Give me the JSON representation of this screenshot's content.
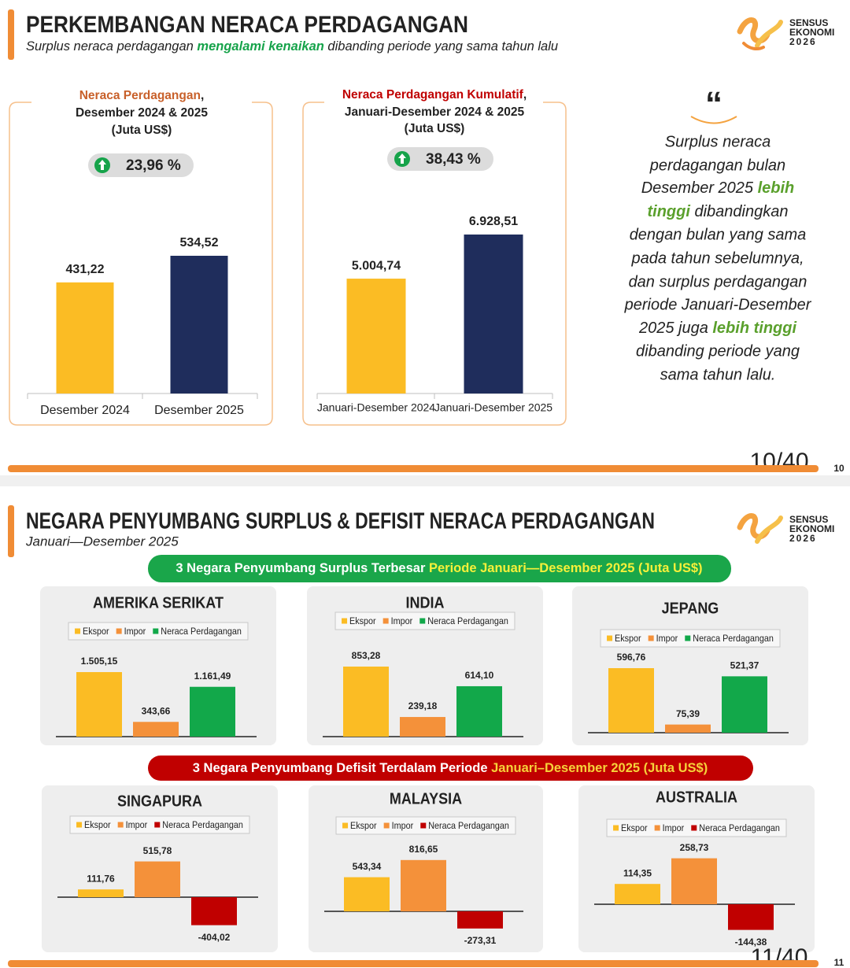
{
  "slide1": {
    "title": "PERKEMBANGAN NERACA PERDAGANGAN",
    "subtitle": [
      "Surplus neraca perdagangan ",
      "mengalami kenaikan",
      " dibanding periode yang sama tahun lalu"
    ],
    "logo": [
      "SENSUS",
      "EKONOMI",
      "2026"
    ],
    "panels": [
      {
        "heading": [
          "Neraca Perdagangan",
          ",",
          "Desember 2024 & 2025",
          "(Juta US$)"
        ],
        "change": "23,96 %"
      },
      {
        "heading": [
          "Neraca Perdagangan Kumulatif",
          ",",
          "Januari-Desember 2024 & 2025",
          "(Juta US$)"
        ],
        "change": "38,43 %"
      }
    ],
    "quote": {
      "mark": "“",
      "lines": [
        [
          "Surplus neraca"
        ],
        [
          "perdagangan bulan"
        ],
        [
          "Desember 2025 ",
          "lebih"
        ],
        [
          "tinggi",
          " dibandingkan"
        ],
        [
          "dengan bulan yang sama"
        ],
        [
          "pada tahun sebelumnya,"
        ],
        [
          "dan surplus perdagangan"
        ],
        [
          "periode Januari-Desember"
        ],
        [
          "2025 juga ",
          "lebih tinggi"
        ],
        [
          "dibanding periode yang"
        ],
        [
          "sama tahun lalu."
        ]
      ]
    },
    "page": "10/40",
    "page_number": "10"
  },
  "slide2": {
    "title": "NEGARA PENYUMBANG",
    "title_highlight": "SURPLUS & DEFISIT NERACA PERDAGANGAN",
    "subtitle": "Januari—Desember 2025",
    "logo": [
      "SENSUS",
      "EKONOMI",
      "2026"
    ],
    "surplus_banner": [
      "3 Negara Penyumbang Surplus Terbesar ",
      "Periode Januari—Desember 2025 (Juta US$)"
    ],
    "deficit_banner": [
      "3 Negara Penyumbang Defisit Terdalam Periode ",
      "Januari–Desember 2025 (Juta US$)"
    ],
    "page": "11/40",
    "page_number": "11"
  },
  "chart_data": [
    {
      "type": "bar",
      "categories": [
        "Desember 2024",
        "Desember 2025"
      ],
      "values": [
        431.22,
        534.52
      ],
      "value_labels": [
        "431,22",
        "534,52"
      ],
      "colors": [
        "#fbbc24",
        "#1f2d5c"
      ]
    },
    {
      "type": "bar",
      "categories": [
        "Januari-Desember 2024",
        "Januari-Desember 2025"
      ],
      "values": [
        5004.74,
        6928.51
      ],
      "value_labels": [
        "5.004,74",
        "6.928,51"
      ],
      "colors": [
        "#fbbc24",
        "#1f2d5c"
      ]
    },
    {
      "type": "bar",
      "title": "AMERIKA SERIKAT",
      "series": [
        {
          "name": "Ekspor",
          "color": "#fbbc24",
          "values": [
            1505.15
          ],
          "value_labels": [
            "1.505,15"
          ]
        },
        {
          "name": "Impor",
          "color": "#f4913a",
          "values": [
            343.66
          ],
          "value_labels": [
            "343,66"
          ]
        },
        {
          "name": "Neraca Perdagangan",
          "color": "#12a84a",
          "values": [
            1161.49
          ],
          "value_labels": [
            "1.161,49"
          ]
        }
      ]
    },
    {
      "type": "bar",
      "title": "INDIA",
      "series": [
        {
          "name": "Ekspor",
          "color": "#fbbc24",
          "values": [
            853.28
          ],
          "value_labels": [
            "853,28"
          ]
        },
        {
          "name": "Impor",
          "color": "#f4913a",
          "values": [
            239.18
          ],
          "value_labels": [
            "239,18"
          ]
        },
        {
          "name": "Neraca Perdagangan",
          "color": "#12a84a",
          "values": [
            614.1
          ],
          "value_labels": [
            "614,10"
          ]
        }
      ]
    },
    {
      "type": "bar",
      "title": "JEPANG",
      "series": [
        {
          "name": "Ekspor",
          "color": "#fbbc24",
          "values": [
            596.76
          ],
          "value_labels": [
            "596,76"
          ]
        },
        {
          "name": "Impor",
          "color": "#f4913a",
          "values": [
            75.39
          ],
          "value_labels": [
            "75,39"
          ]
        },
        {
          "name": "Neraca Perdagangan",
          "color": "#12a84a",
          "values": [
            521.37
          ],
          "value_labels": [
            "521,37"
          ]
        }
      ]
    },
    {
      "type": "bar",
      "title": "SINGAPURA",
      "series": [
        {
          "name": "Ekspor",
          "color": "#fbbc24",
          "values": [
            111.76
          ],
          "value_labels": [
            "111,76"
          ]
        },
        {
          "name": "Impor",
          "color": "#f4913a",
          "values": [
            515.78
          ],
          "value_labels": [
            "515,78"
          ]
        },
        {
          "name": "Neraca Perdagangan",
          "color": "#c00000",
          "values": [
            -404.02
          ],
          "value_labels": [
            "-404,02"
          ]
        }
      ]
    },
    {
      "type": "bar",
      "title": "MALAYSIA",
      "series": [
        {
          "name": "Ekspor",
          "color": "#fbbc24",
          "values": [
            543.34
          ],
          "value_labels": [
            "543,34"
          ]
        },
        {
          "name": "Impor",
          "color": "#f4913a",
          "values": [
            816.65
          ],
          "value_labels": [
            "816,65"
          ]
        },
        {
          "name": "Neraca Perdagangan",
          "color": "#c00000",
          "values": [
            -273.31
          ],
          "value_labels": [
            "-273,31"
          ]
        }
      ]
    },
    {
      "type": "bar",
      "title": "AUSTRALIA",
      "series": [
        {
          "name": "Ekspor",
          "color": "#fbbc24",
          "values": [
            114.35
          ],
          "value_labels": [
            "114,35"
          ]
        },
        {
          "name": "Impor",
          "color": "#f4913a",
          "values": [
            258.73
          ],
          "value_labels": [
            "258,73"
          ]
        },
        {
          "name": "Neraca Perdagangan",
          "color": "#c00000",
          "values": [
            -144.38
          ],
          "value_labels": [
            "-144,38"
          ]
        }
      ]
    }
  ]
}
